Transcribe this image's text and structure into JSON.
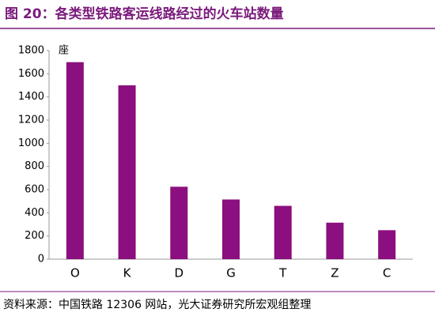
{
  "chart_data": {
    "type": "bar",
    "title": "图 20：各类型铁路客运线路经过的火车站数量",
    "y_label": "座",
    "categories": [
      "O",
      "K",
      "D",
      "G",
      "T",
      "Z",
      "C"
    ],
    "values": [
      1700,
      1500,
      625,
      515,
      460,
      315,
      250
    ],
    "color": "#8b0f7e",
    "ylim": [
      0,
      1800
    ],
    "yticks": [
      0,
      200,
      400,
      600,
      800,
      1000,
      1200,
      1400,
      1600,
      1800
    ],
    "grid": false,
    "source": "资料来源：中国铁路 12306 网站，光大证券研究所宏观组整理"
  }
}
